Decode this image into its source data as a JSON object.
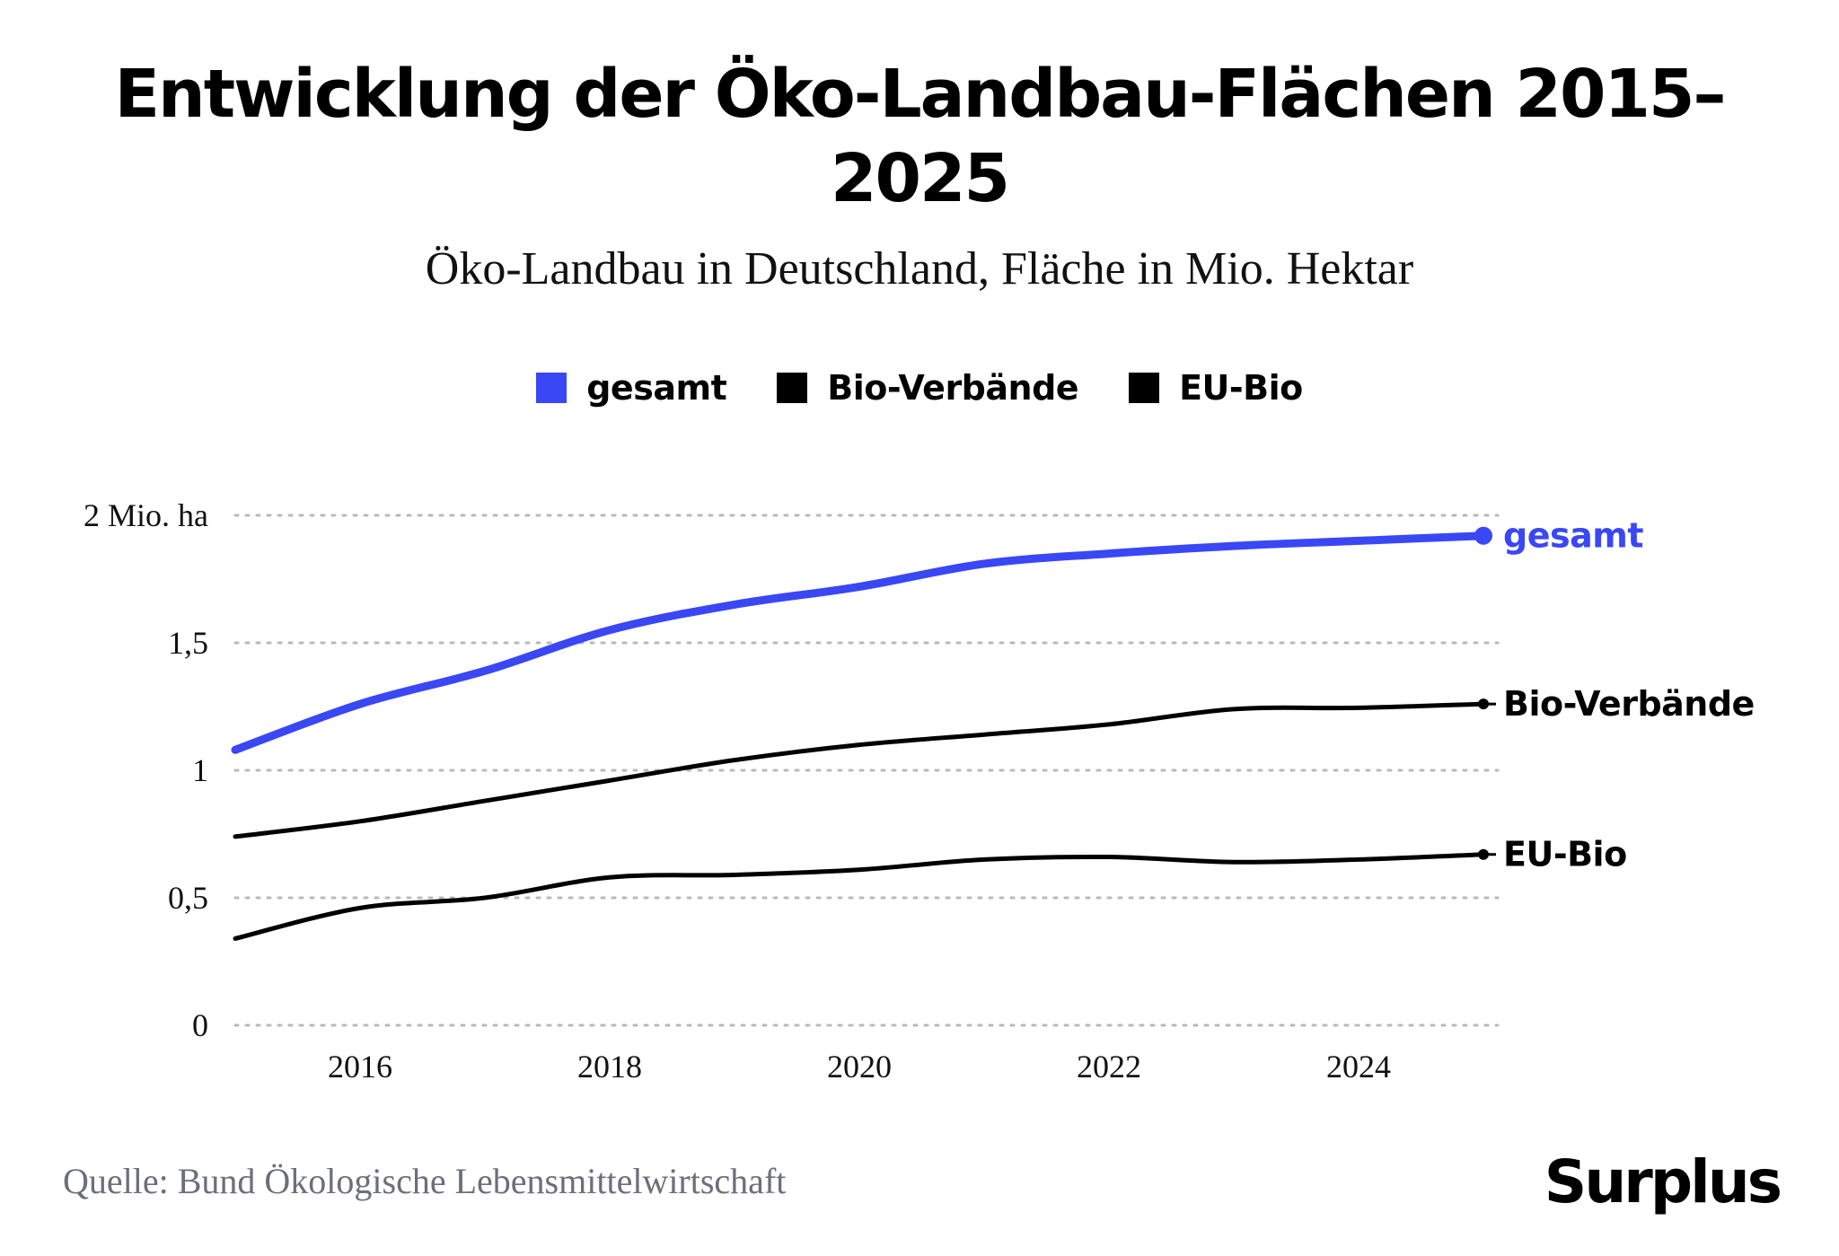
{
  "title": "Entwicklung der Öko-Landbau-Flächen 2015–2025",
  "subtitle": "Öko-Landbau in Deutschland, Fläche in Mio. Hektar",
  "legend": [
    {
      "label": "gesamt",
      "color": "#3a47f5"
    },
    {
      "label": "Bio-Verbände",
      "color": "#000000"
    },
    {
      "label": "EU-Bio",
      "color": "#000000"
    }
  ],
  "source": "Quelle: Bund Ökologische Lebensmittelwirtschaft",
  "logo": "Surplus",
  "chart_data": {
    "type": "line",
    "x": [
      2015,
      2016,
      2017,
      2018,
      2019,
      2020,
      2021,
      2022,
      2023,
      2024,
      2025
    ],
    "xticks": [
      2016,
      2018,
      2020,
      2022,
      2024
    ],
    "xtick_labels": [
      "2016",
      "2018",
      "2020",
      "2022",
      "2024"
    ],
    "xlim": [
      2015,
      2025
    ],
    "ylim": [
      0,
      2
    ],
    "yticks": [
      0,
      0.5,
      1,
      1.5,
      2
    ],
    "ytick_labels": [
      "0",
      "0,5",
      "1",
      "1,5",
      "2 Mio. ha"
    ],
    "grid": "horizontal dotted",
    "legend_position": "top-center",
    "series": [
      {
        "name": "gesamt",
        "color": "#3a47f5",
        "end_label": "gesamt",
        "values": [
          1.08,
          1.26,
          1.39,
          1.55,
          1.65,
          1.72,
          1.81,
          1.85,
          1.88,
          1.9,
          1.92
        ]
      },
      {
        "name": "Bio-Verbände",
        "color": "#000000",
        "end_label": "Bio-Verbände",
        "values": [
          0.74,
          0.8,
          0.88,
          0.96,
          1.04,
          1.1,
          1.14,
          1.18,
          1.24,
          1.245,
          1.26
        ]
      },
      {
        "name": "EU-Bio",
        "color": "#000000",
        "end_label": "EU-Bio",
        "values": [
          0.34,
          0.46,
          0.5,
          0.58,
          0.59,
          0.61,
          0.65,
          0.66,
          0.64,
          0.65,
          0.67
        ]
      }
    ]
  }
}
